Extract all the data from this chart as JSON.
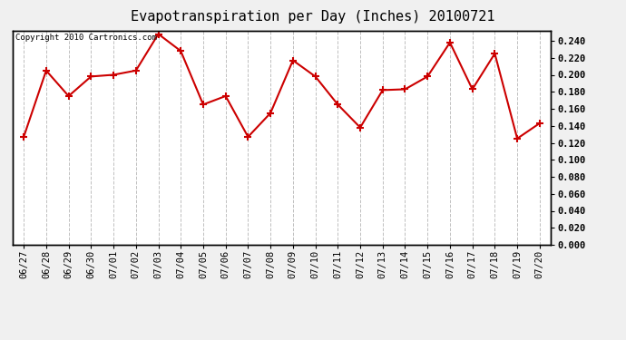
{
  "title": "Evapotranspiration per Day (Inches) 20100721",
  "copyright_text": "Copyright 2010 Cartronics.com",
  "dates": [
    "06/27",
    "06/28",
    "06/29",
    "06/30",
    "07/01",
    "07/02",
    "07/03",
    "07/04",
    "07/05",
    "07/06",
    "07/07",
    "07/08",
    "07/09",
    "07/10",
    "07/11",
    "07/12",
    "07/13",
    "07/14",
    "07/15",
    "07/16",
    "07/17",
    "07/18",
    "07/19",
    "07/20"
  ],
  "values": [
    0.127,
    0.205,
    0.175,
    0.198,
    0.2,
    0.205,
    0.248,
    0.228,
    0.165,
    0.175,
    0.127,
    0.155,
    0.217,
    0.198,
    0.165,
    0.138,
    0.182,
    0.183,
    0.198,
    0.238,
    0.183,
    0.225,
    0.125,
    0.143
  ],
  "ylim": [
    0.0,
    0.252
  ],
  "yticks": [
    0.0,
    0.02,
    0.04,
    0.06,
    0.08,
    0.1,
    0.12,
    0.14,
    0.16,
    0.18,
    0.2,
    0.22,
    0.24
  ],
  "line_color": "#cc0000",
  "marker": "+",
  "marker_color": "#cc0000",
  "marker_size": 6,
  "line_width": 1.5,
  "plot_bg_color": "#ffffff",
  "fig_bg_color": "#f0f0f0",
  "grid_color": "#c0c0c0",
  "title_fontsize": 11,
  "tick_fontsize": 7.5,
  "copyright_fontsize": 6.5
}
